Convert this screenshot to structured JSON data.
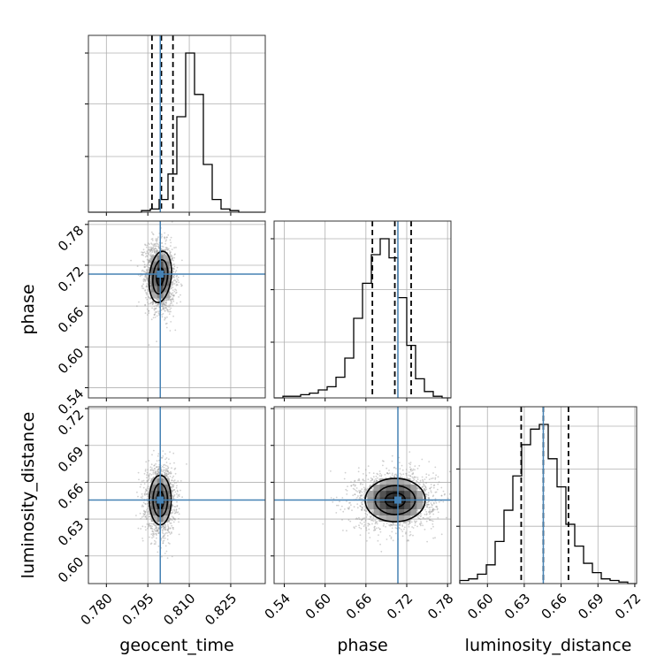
{
  "chart_data": {
    "type": "corner",
    "parameters": [
      "geocent_time",
      "phase",
      "luminosity_distance"
    ],
    "axis_labels": {
      "geocent_time": "geocent_time",
      "phase": "phase",
      "luminosity_distance": "luminosity_distance"
    },
    "ranges": {
      "geocent_time": [
        0.7735,
        0.8375
      ],
      "phase": [
        0.525,
        0.785
      ],
      "luminosity_distance": [
        0.5775,
        0.7215
      ]
    },
    "ticks": {
      "geocent_time": [
        "0.780",
        "0.795",
        "0.810",
        "0.825"
      ],
      "phase": [
        "0.54",
        "0.60",
        "0.66",
        "0.72",
        "0.78"
      ],
      "luminosity_distance": [
        "0.60",
        "0.63",
        "0.66",
        "0.69",
        "0.72"
      ]
    },
    "truths": {
      "geocent_time": 0.7995,
      "phase": 0.707,
      "luminosity_distance": 0.6455
    },
    "quantiles": {
      "geocent_time": [
        0.7965,
        0.7999,
        0.8041
      ],
      "phase": [
        0.6695,
        0.7025,
        0.7265
      ],
      "luminosity_distance": [
        0.6275,
        0.6455,
        0.666
      ]
    },
    "histograms": {
      "geocent_time": [
        0,
        0,
        0,
        0,
        0,
        0,
        0.01,
        0.02,
        0.08,
        0.24,
        0.6,
        1.0,
        0.74,
        0.3,
        0.08,
        0.02,
        0.01,
        0,
        0,
        0
      ],
      "phase": [
        0,
        0.01,
        0.01,
        0.02,
        0.03,
        0.05,
        0.07,
        0.13,
        0.25,
        0.5,
        0.72,
        0.9,
        1.0,
        0.88,
        0.63,
        0.33,
        0.12,
        0.04,
        0.01,
        0
      ],
      "luminosity_distance": [
        0.02,
        0.03,
        0.06,
        0.12,
        0.27,
        0.47,
        0.69,
        0.89,
        0.99,
        1.02,
        0.8,
        0.62,
        0.38,
        0.24,
        0.13,
        0.07,
        0.03,
        0.02,
        0.01,
        0
      ]
    },
    "pair_stats": {
      "geocent_time|phase": {
        "mean": [
          0.7995,
          0.703
        ],
        "sd": [
          0.0025,
          0.024
        ],
        "corr": -0.12
      },
      "geocent_time|luminosity_distance": {
        "mean": [
          0.7995,
          0.6455
        ],
        "sd": [
          0.0025,
          0.0128
        ],
        "corr": 0.0
      },
      "phase|luminosity_distance": {
        "mean": [
          0.703,
          0.6455
        ],
        "sd": [
          0.028,
          0.0112
        ],
        "corr": 0.05
      }
    },
    "contour_levels": [
      0.5,
      1.0,
      1.5
    ],
    "grid": true,
    "colors": {
      "truth": "#4682b4",
      "hist": "#000000",
      "quantile": "#000000",
      "scatter": "#9a9a9a",
      "grid": "#b0b0b0"
    }
  }
}
